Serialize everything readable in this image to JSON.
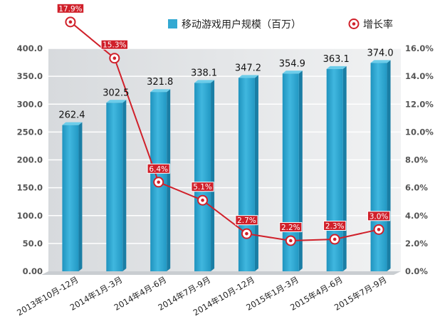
{
  "chart_data": {
    "type": "bar",
    "categories": [
      "2013年10月-12月",
      "2014年1月-3月",
      "2014年4月-6月",
      "2014年7月-9月",
      "2014年10月-12月",
      "2015年1月-3月",
      "2015年4月-6月",
      "2015年7月-9月"
    ],
    "series": [
      {
        "name": "移动游戏用户规模（百万）",
        "type": "bar",
        "axis": "left",
        "values": [
          262.4,
          302.5,
          321.8,
          338.1,
          347.2,
          354.9,
          363.1,
          374.0
        ],
        "labels": [
          "262.4",
          "302.5",
          "321.8",
          "338.1",
          "347.2",
          "354.9",
          "363.1",
          "374.0"
        ],
        "color": "#33a9d2"
      },
      {
        "name": "增长率",
        "type": "line",
        "axis": "right",
        "values": [
          17.9,
          15.3,
          6.4,
          5.1,
          2.7,
          2.2,
          2.3,
          3.0
        ],
        "labels": [
          "17.9%",
          "15.3%",
          "6.4%",
          "5.1%",
          "2.7%",
          "2.2%",
          "2.3%",
          "3.0%"
        ],
        "color": "#d0202a"
      }
    ],
    "y_left": {
      "min": 0,
      "max": 400,
      "ticks": [
        0,
        50,
        100,
        150,
        200,
        250,
        300,
        350,
        400
      ],
      "tick_labels": [
        "0.00",
        "50.0",
        "100.0",
        "150.0",
        "200.0",
        "250.0",
        "300.0",
        "350.0",
        "400.0"
      ]
    },
    "y_right": {
      "min": 0,
      "max": 16,
      "ticks": [
        0,
        2,
        4,
        6,
        8,
        10,
        12,
        14,
        16
      ],
      "tick_labels": [
        "0.0%",
        "2.0%",
        "4.0%",
        "6.0%",
        "8.0%",
        "10.0%",
        "12.0%",
        "14.0%",
        "16.0%"
      ]
    },
    "title": "",
    "xlabel": "",
    "ylabel": "",
    "grid": true,
    "legend_position": "top-right"
  }
}
